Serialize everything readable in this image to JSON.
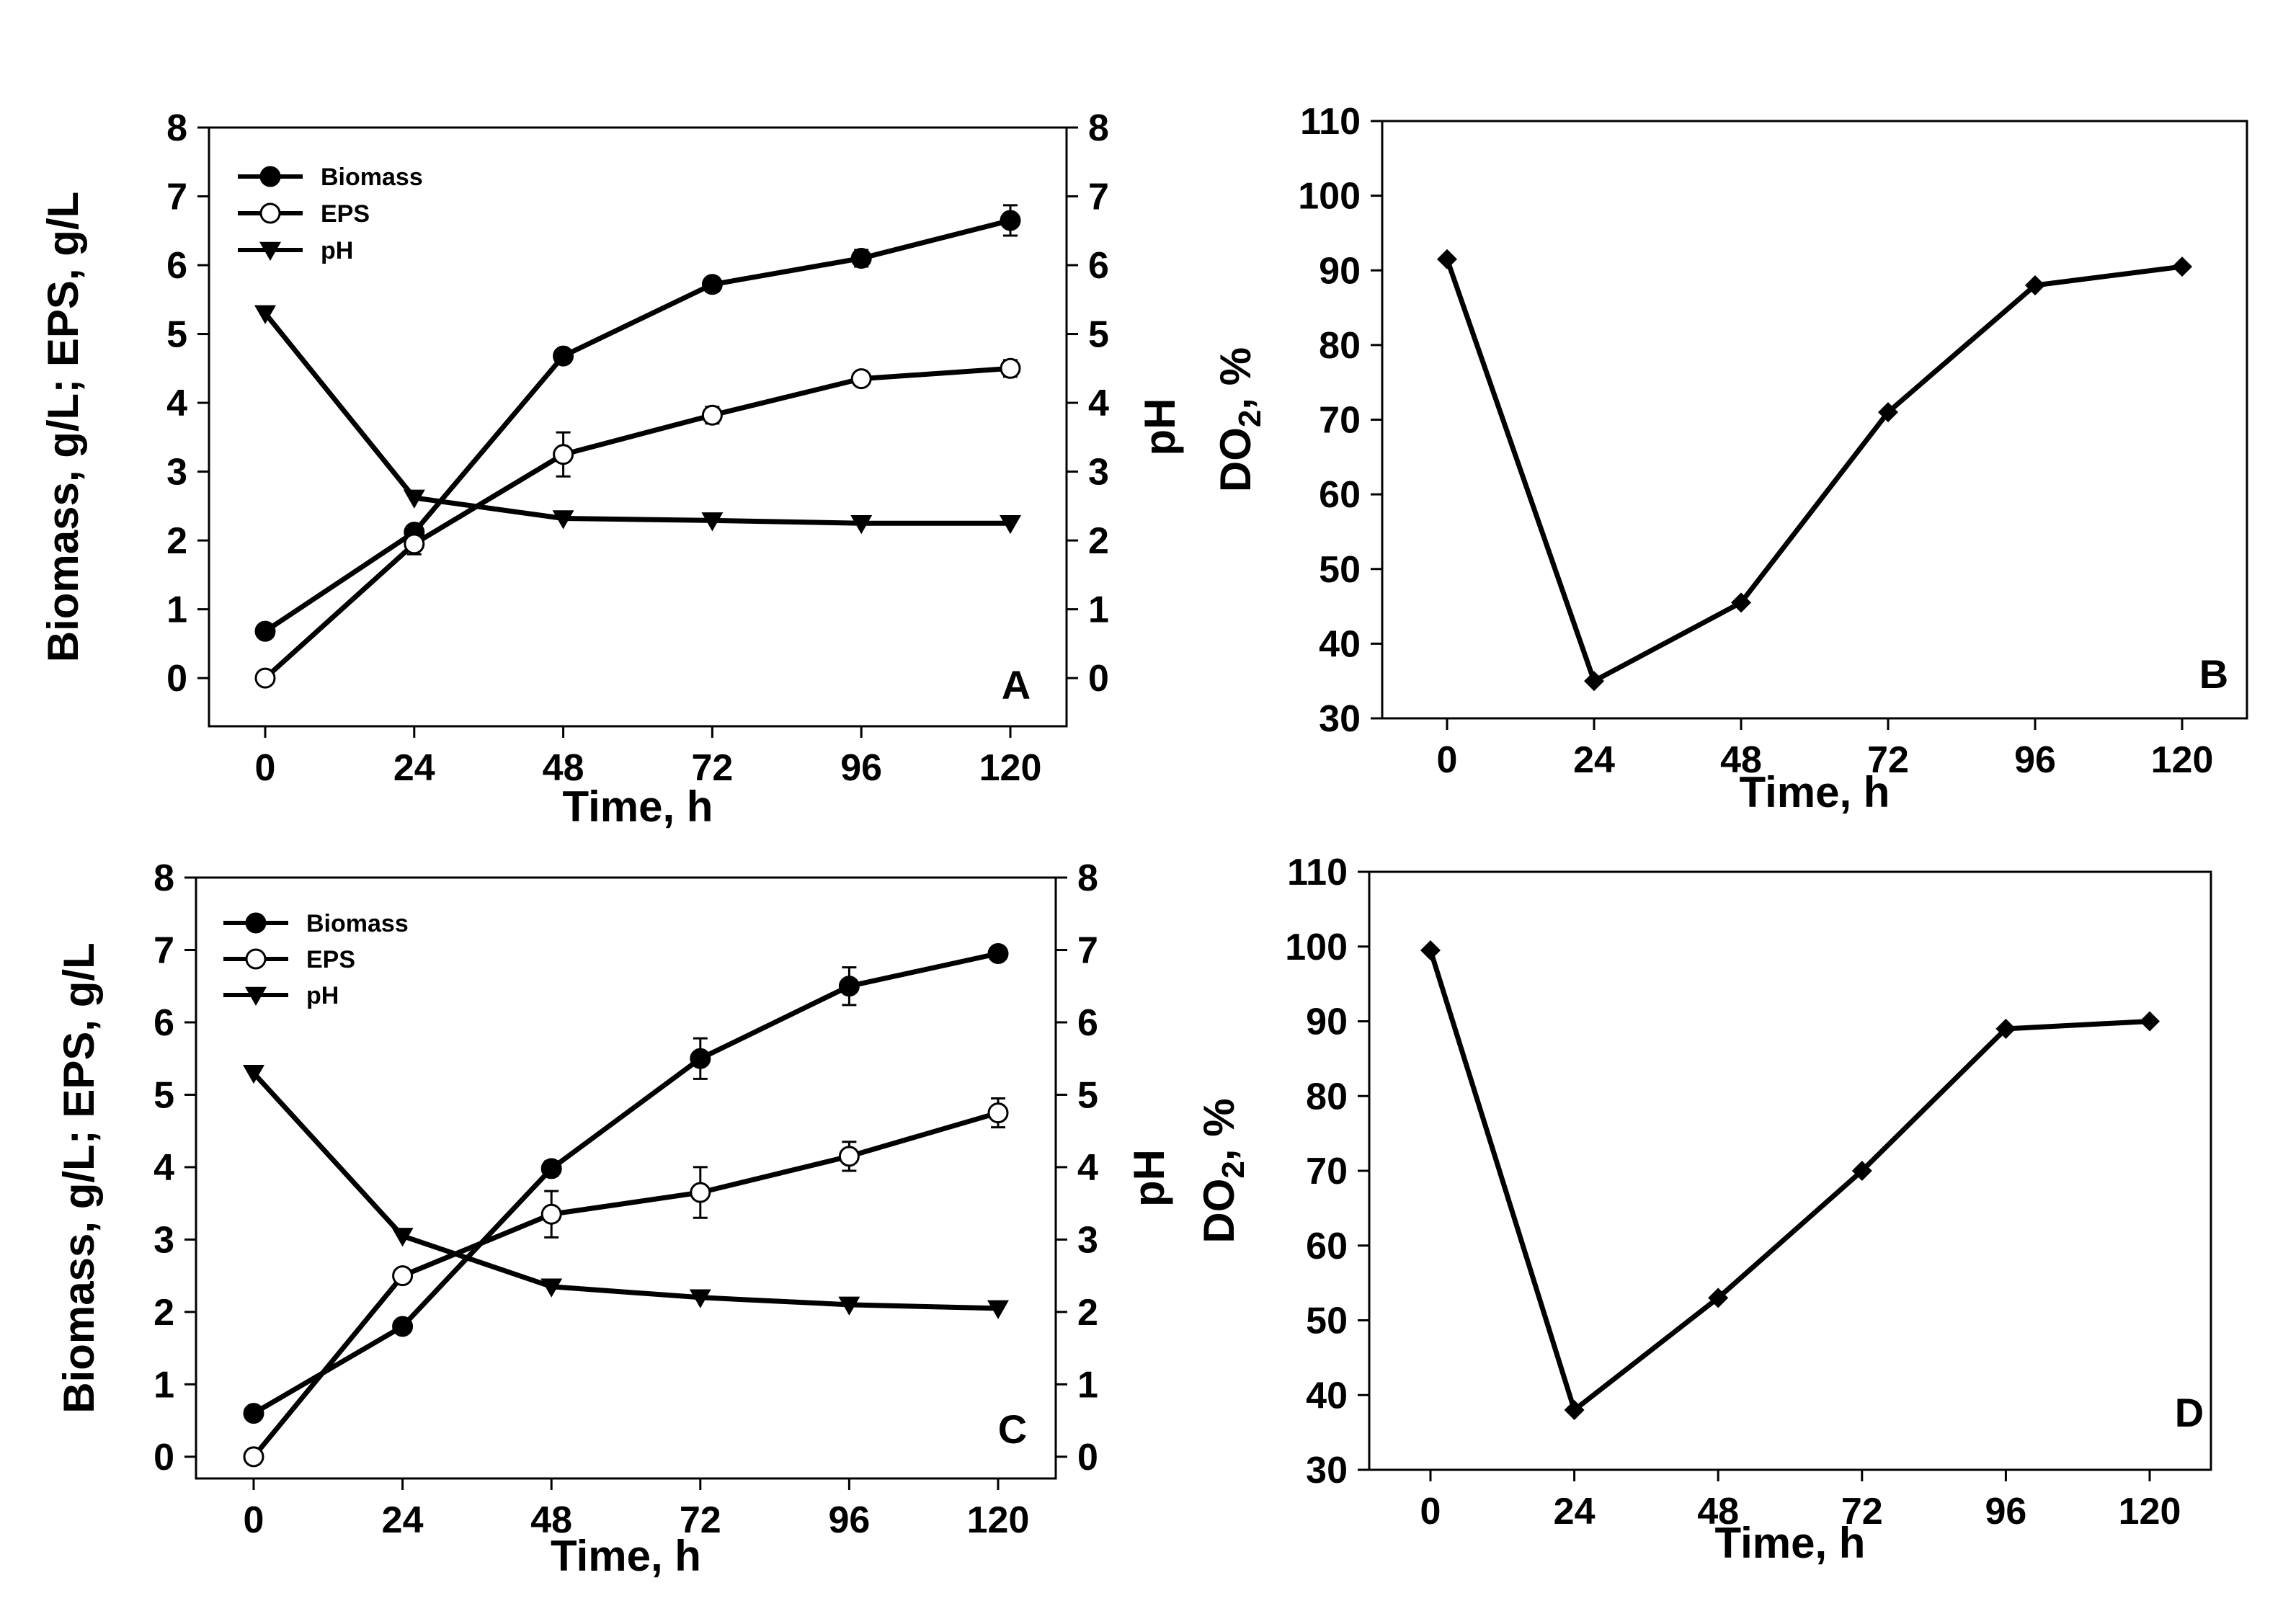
{
  "figure": {
    "background": "#ffffff",
    "ink": "#000000"
  },
  "chart_data": [
    {
      "id": "A",
      "type": "line",
      "panel_label": "A",
      "x": [
        0,
        24,
        48,
        72,
        96,
        120
      ],
      "xticks": [
        "0",
        "24",
        "48",
        "72",
        "96",
        "120"
      ],
      "xlabel": "Time, h",
      "ylabel": "Biomass, g/L; EPS, g/L",
      "ylabel_right": "pH",
      "ylim": [
        -0.7,
        8
      ],
      "yticks": [
        "0",
        "1",
        "2",
        "3",
        "4",
        "5",
        "6",
        "7",
        "8"
      ],
      "yticks_right": [
        "0",
        "1",
        "2",
        "3",
        "4",
        "5",
        "6",
        "7",
        "8"
      ],
      "legend_position": "top-left",
      "series": [
        {
          "name": "Biomass",
          "marker": "filled-circle",
          "values": [
            0.68,
            2.12,
            4.68,
            5.72,
            6.1,
            6.65
          ],
          "err": [
            0,
            0,
            0,
            0.1,
            0.12,
            0.22
          ]
        },
        {
          "name": "EPS",
          "marker": "open-circle",
          "values": [
            0,
            1.95,
            3.25,
            3.82,
            4.35,
            4.5
          ],
          "err": [
            0,
            0.15,
            0.32,
            0.12,
            0.05,
            0.12
          ]
        },
        {
          "name": "pH",
          "marker": "filled-triangle-down",
          "values": [
            5.3,
            2.62,
            2.32,
            2.29,
            2.25,
            2.25
          ],
          "err": [
            0,
            0,
            0,
            0,
            0,
            0
          ]
        }
      ]
    },
    {
      "id": "B",
      "type": "line",
      "panel_label": "B",
      "x": [
        0,
        24,
        48,
        72,
        96,
        120
      ],
      "xticks": [
        "0",
        "24",
        "48",
        "72",
        "96",
        "120"
      ],
      "xlabel": "Time, h",
      "ylabel_main": "DO",
      "ylabel_sub": "2",
      "ylabel_tail": ", %",
      "ylim": [
        30,
        110
      ],
      "yticks": [
        "30",
        "40",
        "50",
        "60",
        "70",
        "80",
        "90",
        "100",
        "110"
      ],
      "series": [
        {
          "name": "DO2",
          "marker": "filled-diamond",
          "values": [
            91.5,
            35,
            45.5,
            71,
            88,
            90.5
          ]
        }
      ]
    },
    {
      "id": "C",
      "type": "line",
      "panel_label": "C",
      "x": [
        0,
        24,
        48,
        72,
        96,
        120
      ],
      "xticks": [
        "0",
        "24",
        "48",
        "72",
        "96",
        "120"
      ],
      "xlabel": "Time, h",
      "ylabel": "Biomass, g/L; EPS, g/L",
      "ylabel_right": "pH",
      "ylim": [
        -0.3,
        8
      ],
      "yticks": [
        "0",
        "1",
        "2",
        "3",
        "4",
        "5",
        "6",
        "7",
        "8"
      ],
      "yticks_right": [
        "0",
        "1",
        "2",
        "3",
        "4",
        "5",
        "6",
        "7",
        "8"
      ],
      "legend_position": "top-left",
      "series": [
        {
          "name": "Biomass",
          "marker": "filled-circle",
          "values": [
            0.6,
            1.8,
            3.98,
            5.5,
            6.5,
            6.95
          ],
          "err": [
            0,
            0,
            0.1,
            0.28,
            0.26,
            0
          ]
        },
        {
          "name": "EPS",
          "marker": "open-circle",
          "values": [
            0,
            2.5,
            3.35,
            3.65,
            4.15,
            4.75
          ],
          "err": [
            0,
            0,
            0.32,
            0.35,
            0.2,
            0.2
          ]
        },
        {
          "name": "pH",
          "marker": "filled-triangle-down",
          "values": [
            5.3,
            3.05,
            2.35,
            2.2,
            2.1,
            2.05
          ],
          "err": [
            0,
            0,
            0,
            0,
            0,
            0
          ]
        }
      ]
    },
    {
      "id": "D",
      "type": "line",
      "panel_label": "D",
      "x": [
        0,
        24,
        48,
        72,
        96,
        120
      ],
      "xticks": [
        "0",
        "24",
        "48",
        "72",
        "96",
        "120"
      ],
      "xlabel": "Time, h",
      "ylabel_main": "DO",
      "ylabel_sub": "2",
      "ylabel_tail": ", %",
      "ylim": [
        30,
        110
      ],
      "yticks": [
        "30",
        "40",
        "50",
        "60",
        "70",
        "80",
        "90",
        "100",
        "110"
      ],
      "series": [
        {
          "name": "DO2",
          "marker": "filled-diamond",
          "values": [
            99.5,
            38,
            53,
            70,
            89,
            90
          ]
        }
      ]
    }
  ]
}
